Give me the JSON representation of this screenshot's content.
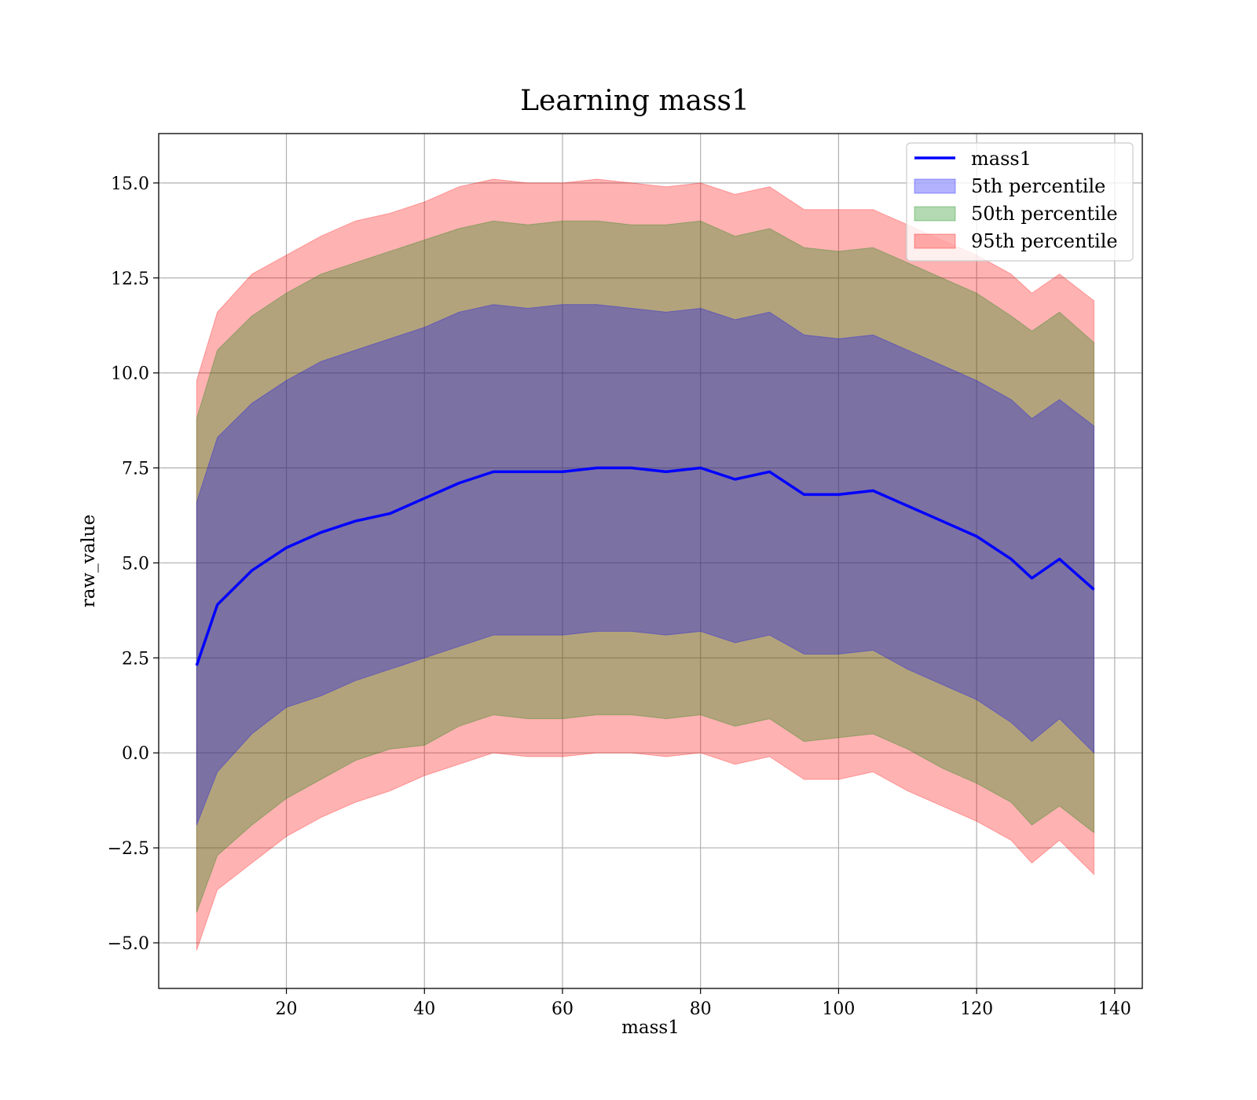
{
  "chart_data": {
    "type": "area",
    "title": "Learning mass1",
    "xlabel": "mass1",
    "ylabel": "raw_value",
    "xlim": [
      1.5,
      144
    ],
    "ylim": [
      -6.2,
      16.3
    ],
    "xticks": [
      20,
      40,
      60,
      80,
      100,
      120,
      140
    ],
    "xtick_labels": [
      "20",
      "40",
      "60",
      "80",
      "100",
      "120",
      "140"
    ],
    "yticks": [
      -5.0,
      -2.5,
      0.0,
      2.5,
      5.0,
      7.5,
      10.0,
      12.5,
      15.0
    ],
    "ytick_labels": [
      "−5.0",
      "−2.5",
      "0.0",
      "2.5",
      "5.0",
      "7.5",
      "10.0",
      "12.5",
      "15.0"
    ],
    "grid": true,
    "legend_position": "top-right",
    "x": [
      7,
      10,
      15,
      20,
      25,
      30,
      35,
      40,
      45,
      50,
      55,
      60,
      65,
      70,
      75,
      80,
      85,
      90,
      95,
      100,
      105,
      110,
      115,
      120,
      125,
      128,
      132,
      137
    ],
    "series": [
      {
        "name": "mass1",
        "kind": "line",
        "color": "#0000ff",
        "values": [
          2.3,
          3.9,
          4.8,
          5.4,
          5.8,
          6.1,
          6.3,
          6.7,
          7.1,
          7.4,
          7.4,
          7.4,
          7.5,
          7.5,
          7.4,
          7.5,
          7.2,
          7.4,
          6.8,
          6.8,
          6.9,
          6.5,
          6.1,
          5.7,
          5.1,
          4.6,
          5.1,
          4.3
        ]
      },
      {
        "name": "5th percentile",
        "kind": "band",
        "color": "#0000ff",
        "upper": [
          6.6,
          8.3,
          9.2,
          9.8,
          10.3,
          10.6,
          10.9,
          11.2,
          11.6,
          11.8,
          11.7,
          11.8,
          11.8,
          11.7,
          11.6,
          11.7,
          11.4,
          11.6,
          11.0,
          10.9,
          11.0,
          10.6,
          10.2,
          9.8,
          9.3,
          8.8,
          9.3,
          8.6
        ],
        "lower": [
          -1.9,
          -0.5,
          0.5,
          1.2,
          1.5,
          1.9,
          2.2,
          2.5,
          2.8,
          3.1,
          3.1,
          3.1,
          3.2,
          3.2,
          3.1,
          3.2,
          2.9,
          3.1,
          2.6,
          2.6,
          2.7,
          2.2,
          1.8,
          1.4,
          0.8,
          0.3,
          0.9,
          0.0
        ]
      },
      {
        "name": "50th percentile",
        "kind": "band",
        "color": "#008000",
        "upper": [
          8.8,
          10.6,
          11.5,
          12.1,
          12.6,
          12.9,
          13.2,
          13.5,
          13.8,
          14.0,
          13.9,
          14.0,
          14.0,
          13.9,
          13.9,
          14.0,
          13.6,
          13.8,
          13.3,
          13.2,
          13.3,
          12.9,
          12.5,
          12.1,
          11.5,
          11.1,
          11.6,
          10.8
        ],
        "lower": [
          -4.2,
          -2.7,
          -1.9,
          -1.2,
          -0.7,
          -0.2,
          0.1,
          0.2,
          0.7,
          1.0,
          0.9,
          0.9,
          1.0,
          1.0,
          0.9,
          1.0,
          0.7,
          0.9,
          0.3,
          0.4,
          0.5,
          0.1,
          -0.4,
          -0.8,
          -1.3,
          -1.9,
          -1.4,
          -2.1
        ]
      },
      {
        "name": "95th percentile",
        "kind": "band",
        "color": "#ff0000",
        "upper": [
          9.8,
          11.6,
          12.6,
          13.1,
          13.6,
          14.0,
          14.2,
          14.5,
          14.9,
          15.1,
          15.0,
          15.0,
          15.1,
          15.0,
          14.9,
          15.0,
          14.7,
          14.9,
          14.3,
          14.3,
          14.3,
          13.9,
          13.5,
          13.1,
          12.6,
          12.1,
          12.6,
          11.9
        ],
        "lower": [
          -5.2,
          -3.6,
          -2.9,
          -2.2,
          -1.7,
          -1.3,
          -1.0,
          -0.6,
          -0.3,
          0.0,
          -0.1,
          -0.1,
          0.0,
          0.0,
          -0.1,
          0.0,
          -0.3,
          -0.1,
          -0.7,
          -0.7,
          -0.5,
          -1.0,
          -1.4,
          -1.8,
          -2.3,
          -2.9,
          -2.3,
          -3.2
        ]
      }
    ]
  }
}
